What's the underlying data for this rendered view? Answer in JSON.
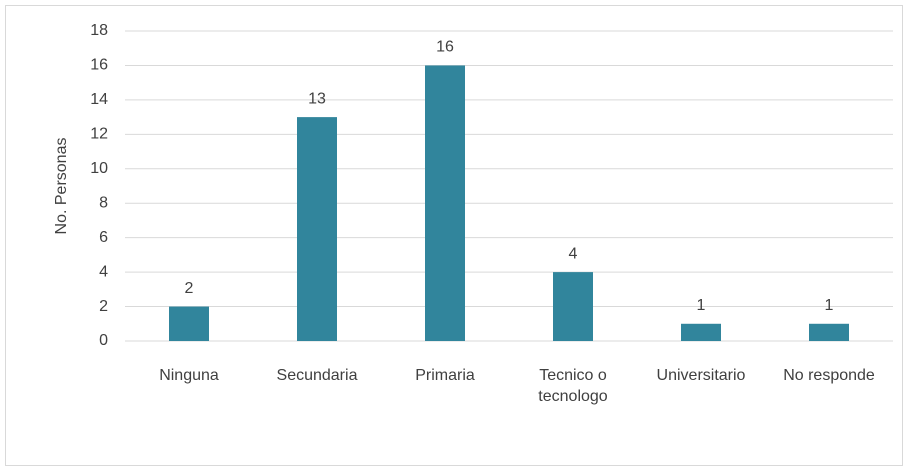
{
  "chart_data": {
    "type": "bar",
    "y_label": "No. Personas",
    "categories": [
      "Ninguna",
      "Secundaria",
      "Primaria",
      "Tecnico o tecnologo",
      "Universitario",
      "No responde"
    ],
    "values": [
      2,
      13,
      16,
      4,
      1,
      1
    ],
    "color": "#31859c",
    "ylim": [
      0,
      18
    ],
    "yticks": [
      0,
      2,
      4,
      6,
      8,
      10,
      12,
      14,
      16,
      18
    ],
    "grid": true,
    "data_labels": true
  }
}
